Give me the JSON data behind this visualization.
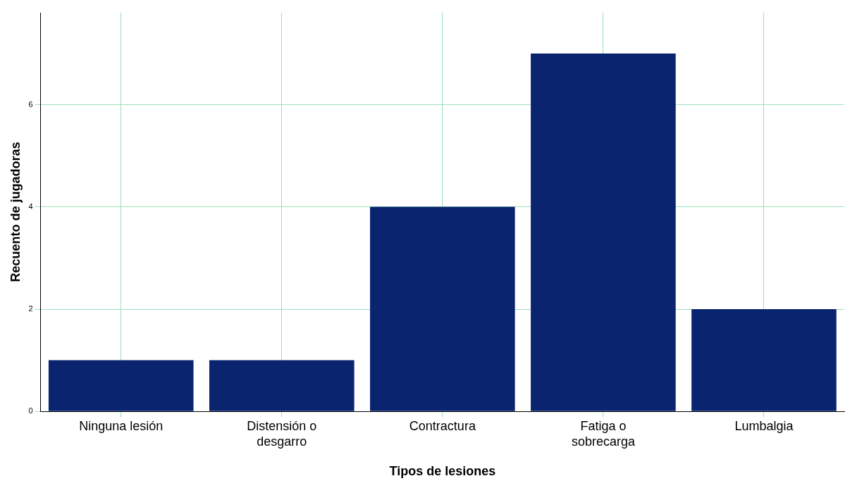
{
  "chart_data": {
    "type": "bar",
    "xlabel": "Tipos de lesiones",
    "ylabel": "Recuento de jugadoras",
    "categories": [
      "Ninguna lesión",
      "Distensión o desgarro",
      "Contractura",
      "Fatiga o sobrecarga",
      "Lumbalgia"
    ],
    "values": [
      1,
      1,
      4,
      7,
      2
    ],
    "color": "#0a2470",
    "ylim": [
      0,
      7.8
    ],
    "yticks": [
      0,
      2,
      4,
      6
    ],
    "grid": true
  }
}
